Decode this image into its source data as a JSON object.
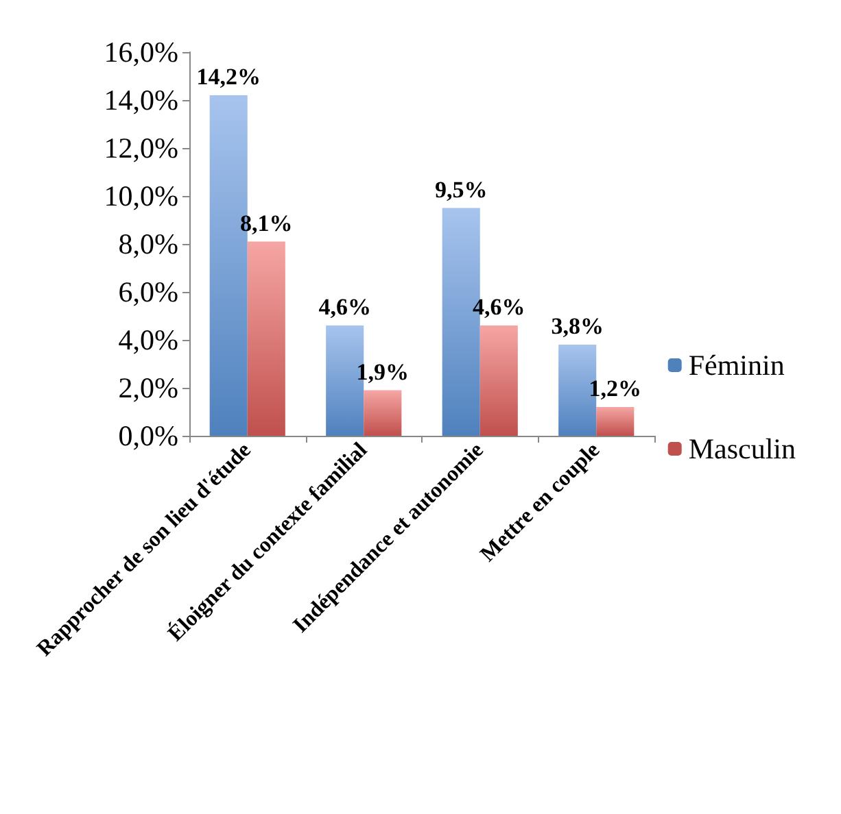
{
  "chart_data": {
    "type": "bar",
    "categories": [
      "Rapprocher de son lieu d'étude",
      "Éloigner du contexte familial",
      "Indépendance et autonomie",
      "Mettre en couple"
    ],
    "series": [
      {
        "name": "Féminin",
        "color": "#4f81bd",
        "values": [
          14.2,
          4.6,
          9.5,
          3.8
        ],
        "value_labels": [
          "14,2%",
          "4,6%",
          "9,5%",
          "3,8%"
        ]
      },
      {
        "name": "Masculin",
        "color": "#c0504d",
        "values": [
          8.1,
          1.9,
          4.6,
          1.2
        ],
        "value_labels": [
          "8,1%",
          "1,9%",
          "4,6%",
          "1,2%"
        ]
      }
    ],
    "ylim": [
      0,
      16
    ],
    "yticks": [
      {
        "value": 0,
        "label": "0,0%"
      },
      {
        "value": 2,
        "label": "2,0%"
      },
      {
        "value": 4,
        "label": "4,0%"
      },
      {
        "value": 6,
        "label": "6,0%"
      },
      {
        "value": 8,
        "label": "8,0%"
      },
      {
        "value": 10,
        "label": "10,0%"
      },
      {
        "value": 12,
        "label": "12,0%"
      },
      {
        "value": 14,
        "label": "14,0%"
      },
      {
        "value": 16,
        "label": "16,0%"
      }
    ],
    "grid": false,
    "legend": "right"
  }
}
